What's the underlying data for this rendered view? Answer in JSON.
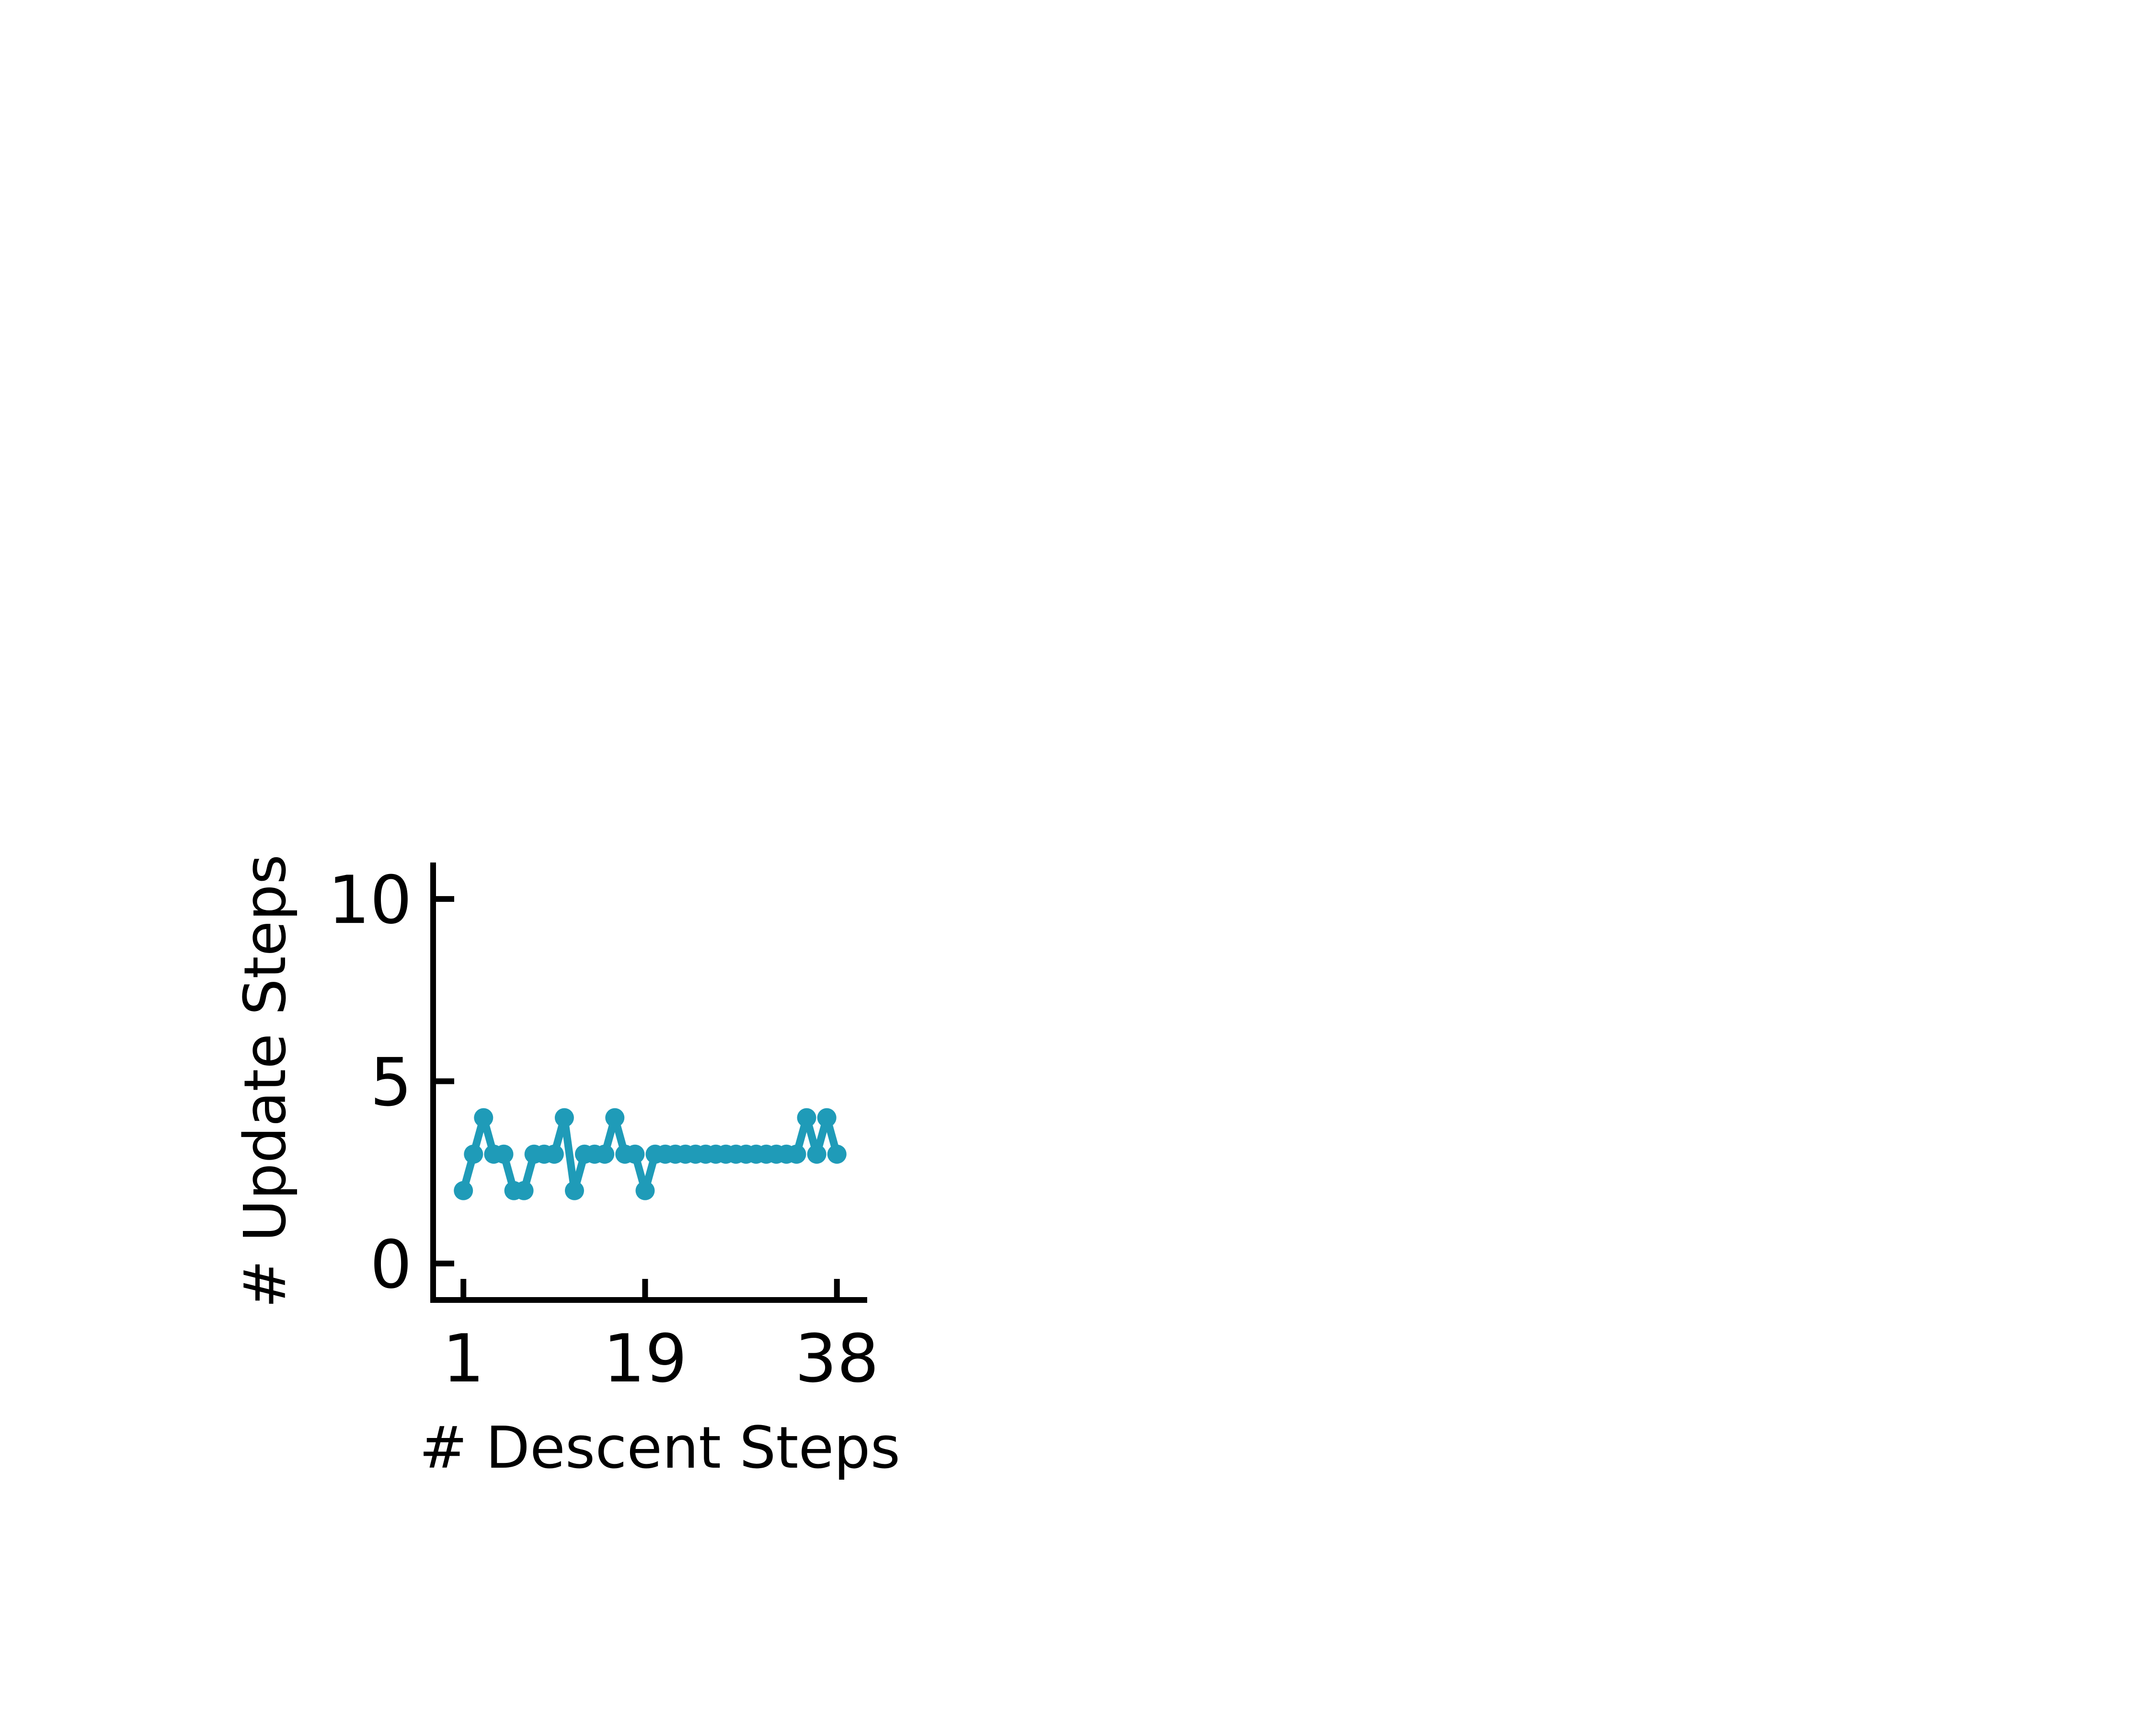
{
  "chart_data": {
    "type": "line",
    "title": "",
    "xlabel": "# Descent Steps",
    "ylabel": "# Update Steps",
    "xlim": [
      -2,
      41
    ],
    "ylim": [
      -1,
      11
    ],
    "xticks": [
      1,
      19,
      38
    ],
    "yticks": [
      0,
      5,
      10
    ],
    "grid": false,
    "legend": "none",
    "series": [
      {
        "color": "#1f9bb8",
        "x": [
          1,
          2,
          3,
          4,
          5,
          6,
          7,
          8,
          9,
          10,
          11,
          12,
          13,
          14,
          15,
          16,
          17,
          18,
          19,
          20,
          21,
          22,
          23,
          24,
          25,
          26,
          27,
          28,
          29,
          30,
          31,
          32,
          33,
          34,
          35,
          36,
          37,
          38
        ],
        "y": [
          2,
          3,
          4,
          3,
          3,
          2,
          2,
          3,
          3,
          3,
          4,
          2,
          3,
          3,
          3,
          4,
          3,
          3,
          2,
          3,
          3,
          3,
          3,
          3,
          3,
          3,
          3,
          3,
          3,
          3,
          3,
          3,
          3,
          3,
          4,
          3,
          4,
          3
        ]
      }
    ]
  }
}
